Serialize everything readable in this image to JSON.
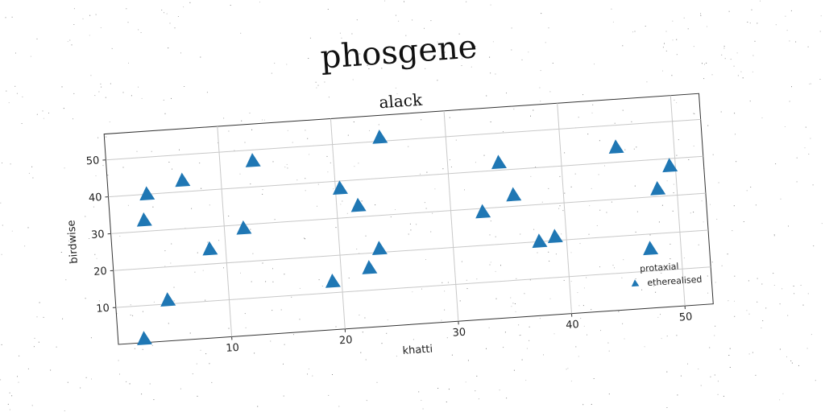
{
  "suptitle": "phosgene",
  "chart_data": {
    "type": "scatter",
    "title": "alack",
    "xlabel": "khatti",
    "ylabel": "birdwise",
    "xlim": [
      0,
      52.5
    ],
    "ylim": [
      0,
      57
    ],
    "xticks": [
      10,
      20,
      30,
      40,
      50
    ],
    "yticks": [
      10,
      20,
      30,
      40,
      50
    ],
    "grid": true,
    "legend": {
      "placement": "lower-right",
      "title": "protaxial",
      "entries": [
        "etherealised"
      ]
    },
    "series": [
      {
        "name": "etherealised",
        "color": "#1f77b4",
        "marker": "triangle",
        "points": [
          {
            "x": 2.3,
            "y": 1.0
          },
          {
            "x": 3.4,
            "y": 40.0
          },
          {
            "x": 3.0,
            "y": 33.0
          },
          {
            "x": 4.6,
            "y": 11.0
          },
          {
            "x": 6.6,
            "y": 43.0
          },
          {
            "x": 8.6,
            "y": 24.0
          },
          {
            "x": 11.7,
            "y": 29.0
          },
          {
            "x": 12.9,
            "y": 47.0
          },
          {
            "x": 19.2,
            "y": 13.0
          },
          {
            "x": 20.4,
            "y": 38.0
          },
          {
            "x": 21.9,
            "y": 33.0
          },
          {
            "x": 22.5,
            "y": 16.0
          },
          {
            "x": 23.5,
            "y": 21.0
          },
          {
            "x": 24.2,
            "y": 51.0
          },
          {
            "x": 32.8,
            "y": 29.0
          },
          {
            "x": 34.5,
            "y": 42.0
          },
          {
            "x": 35.6,
            "y": 33.0
          },
          {
            "x": 37.6,
            "y": 20.0
          },
          {
            "x": 39.0,
            "y": 21.0
          },
          {
            "x": 44.9,
            "y": 44.0
          },
          {
            "x": 47.3,
            "y": 16.0
          },
          {
            "x": 48.3,
            "y": 32.0
          },
          {
            "x": 49.5,
            "y": 38.0
          }
        ]
      }
    ]
  }
}
